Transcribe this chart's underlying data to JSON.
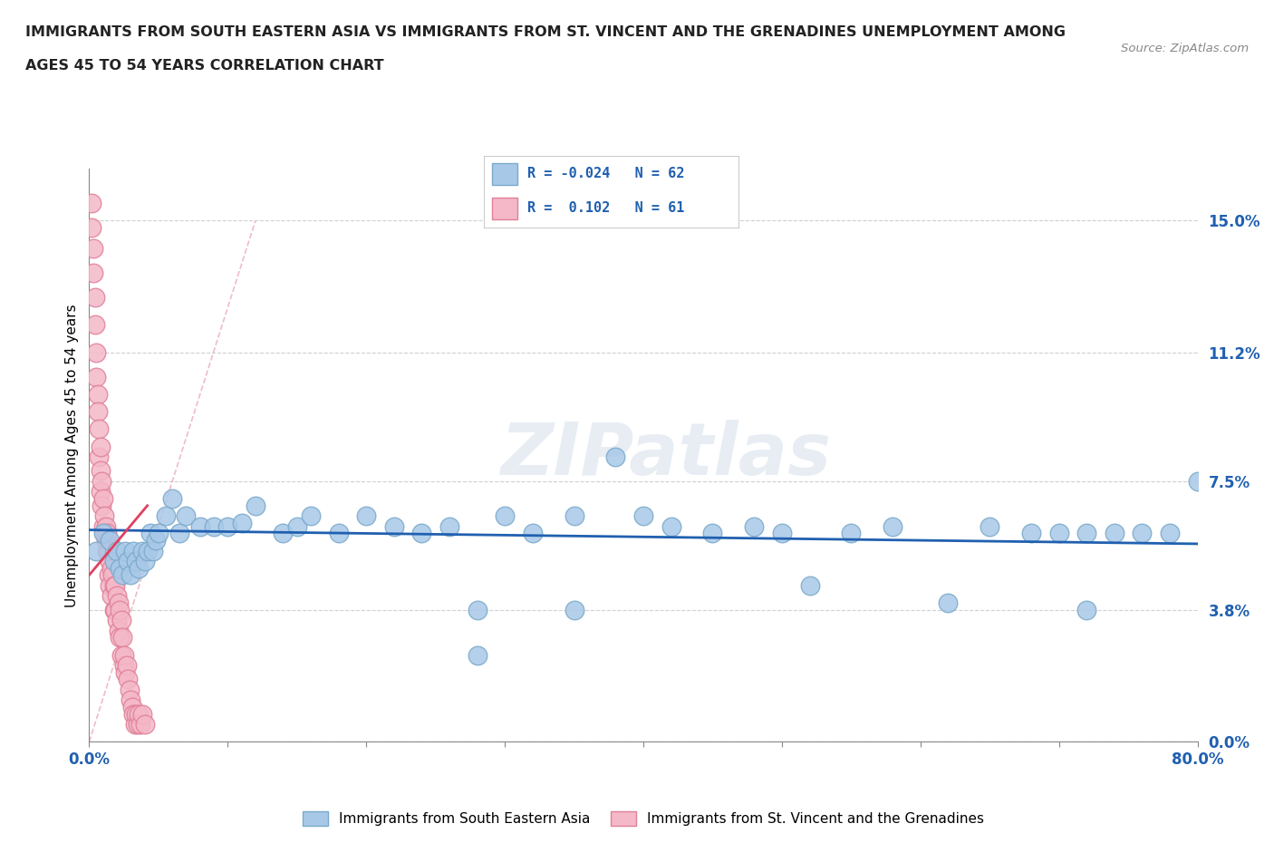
{
  "title_line1": "IMMIGRANTS FROM SOUTH EASTERN ASIA VS IMMIGRANTS FROM ST. VINCENT AND THE GRENADINES UNEMPLOYMENT AMONG",
  "title_line2": "AGES 45 TO 54 YEARS CORRELATION CHART",
  "source_text": "Source: ZipAtlas.com",
  "ylabel": "Unemployment Among Ages 45 to 54 years",
  "xlim": [
    0.0,
    0.8
  ],
  "ylim": [
    0.0,
    0.165
  ],
  "yticks": [
    0.0,
    0.038,
    0.075,
    0.112,
    0.15
  ],
  "ytick_labels": [
    "0.0%",
    "3.8%",
    "7.5%",
    "11.2%",
    "15.0%"
  ],
  "xticks": [
    0.0,
    0.1,
    0.2,
    0.3,
    0.4,
    0.5,
    0.6,
    0.7,
    0.8
  ],
  "xtick_labels": [
    "0.0%",
    "",
    "",
    "",
    "",
    "",
    "",
    "",
    "80.0%"
  ],
  "color_blue": "#a8c8e8",
  "color_blue_edge": "#7aaaca",
  "color_pink": "#f4b8c8",
  "color_pink_edge": "#e08098",
  "color_blue_line": "#2060b0",
  "color_pink_line": "#e04060",
  "color_grid": "#d0d0d0",
  "watermark_text": "ZIPatlas",
  "blue_scatter_x": [
    0.005,
    0.01,
    0.015,
    0.018,
    0.02,
    0.022,
    0.024,
    0.026,
    0.028,
    0.03,
    0.032,
    0.034,
    0.036,
    0.038,
    0.04,
    0.042,
    0.044,
    0.046,
    0.048,
    0.05,
    0.055,
    0.06,
    0.065,
    0.07,
    0.08,
    0.09,
    0.1,
    0.11,
    0.12,
    0.14,
    0.15,
    0.16,
    0.18,
    0.2,
    0.22,
    0.24,
    0.26,
    0.28,
    0.3,
    0.32,
    0.35,
    0.38,
    0.4,
    0.42,
    0.45,
    0.48,
    0.5,
    0.52,
    0.55,
    0.58,
    0.62,
    0.65,
    0.68,
    0.7,
    0.72,
    0.74,
    0.76,
    0.78,
    0.8,
    0.72,
    0.28,
    0.35
  ],
  "blue_scatter_y": [
    0.055,
    0.06,
    0.058,
    0.052,
    0.055,
    0.05,
    0.048,
    0.055,
    0.052,
    0.048,
    0.055,
    0.052,
    0.05,
    0.055,
    0.052,
    0.055,
    0.06,
    0.055,
    0.058,
    0.06,
    0.065,
    0.07,
    0.06,
    0.065,
    0.062,
    0.062,
    0.062,
    0.063,
    0.068,
    0.06,
    0.062,
    0.065,
    0.06,
    0.065,
    0.062,
    0.06,
    0.062,
    0.025,
    0.065,
    0.06,
    0.065,
    0.082,
    0.065,
    0.062,
    0.06,
    0.062,
    0.06,
    0.045,
    0.06,
    0.062,
    0.04,
    0.062,
    0.06,
    0.06,
    0.06,
    0.06,
    0.06,
    0.06,
    0.075,
    0.038,
    0.038,
    0.038
  ],
  "pink_scatter_x": [
    0.002,
    0.002,
    0.003,
    0.003,
    0.004,
    0.004,
    0.005,
    0.005,
    0.006,
    0.006,
    0.007,
    0.007,
    0.008,
    0.008,
    0.008,
    0.009,
    0.009,
    0.01,
    0.01,
    0.011,
    0.011,
    0.012,
    0.012,
    0.013,
    0.013,
    0.014,
    0.014,
    0.015,
    0.015,
    0.016,
    0.016,
    0.017,
    0.018,
    0.018,
    0.019,
    0.019,
    0.02,
    0.02,
    0.021,
    0.021,
    0.022,
    0.022,
    0.023,
    0.023,
    0.024,
    0.025,
    0.025,
    0.026,
    0.027,
    0.028,
    0.029,
    0.03,
    0.031,
    0.032,
    0.033,
    0.034,
    0.035,
    0.036,
    0.037,
    0.038,
    0.04
  ],
  "pink_scatter_y": [
    0.155,
    0.148,
    0.142,
    0.135,
    0.128,
    0.12,
    0.112,
    0.105,
    0.1,
    0.095,
    0.09,
    0.082,
    0.085,
    0.078,
    0.072,
    0.075,
    0.068,
    0.062,
    0.07,
    0.06,
    0.065,
    0.058,
    0.062,
    0.055,
    0.06,
    0.055,
    0.048,
    0.052,
    0.045,
    0.05,
    0.042,
    0.048,
    0.045,
    0.038,
    0.045,
    0.038,
    0.042,
    0.035,
    0.04,
    0.032,
    0.038,
    0.03,
    0.035,
    0.025,
    0.03,
    0.022,
    0.025,
    0.02,
    0.022,
    0.018,
    0.015,
    0.012,
    0.01,
    0.008,
    0.005,
    0.008,
    0.005,
    0.008,
    0.005,
    0.008,
    0.005
  ],
  "blue_line_x": [
    0.0,
    0.8
  ],
  "blue_line_y": [
    0.06,
    0.058
  ],
  "pink_line_x": [
    0.0,
    0.04
  ],
  "pink_line_y": [
    0.055,
    0.065
  ]
}
